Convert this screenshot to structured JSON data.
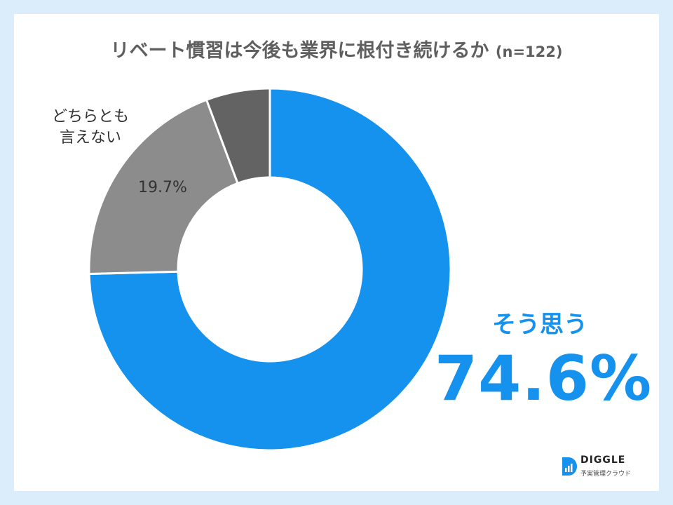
{
  "title": {
    "main": "リベート慣習は今後も業界に根付き続けるか",
    "sample": "(n=122)"
  },
  "chart_data": {
    "type": "pie",
    "variant": "donut",
    "slices": [
      {
        "name": "そう思う",
        "value": 74.6,
        "label": "74.6%",
        "color": "#1591ee"
      },
      {
        "name": "どちらとも言えない",
        "value": 19.7,
        "label": "19.7%",
        "color": "#8c8c8c"
      },
      {
        "name": "",
        "value": 5.7,
        "label": "",
        "color": "#636363"
      }
    ]
  },
  "labels": {
    "neutral_line1": "どちらとも",
    "neutral_line2": "言えない",
    "neutral_pct": "19.7%",
    "yes_name": "そう思う",
    "yes_pct": "74.6%"
  },
  "logo": {
    "name": "DIGGLE",
    "tagline": "予実管理クラウド",
    "icon": "diggle-logo-icon"
  },
  "colors": {
    "page_background": "#dbecfb",
    "card": "#ffffff",
    "accent": "#1591ee",
    "title": "#5f5f5f"
  }
}
